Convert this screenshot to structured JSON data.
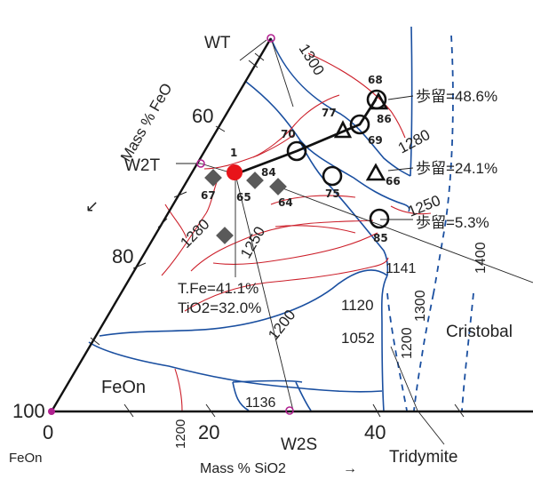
{
  "axes": {
    "feo_axis_label": "Mass %  FeO",
    "sio2_axis_label": "Mass %  SiO2",
    "left_arrow": "↙",
    "right_arrow": "→",
    "tick_60": "60",
    "tick_80": "80",
    "tick_100": "100",
    "tick_0": "0",
    "tick_20": "20",
    "tick_40": "40",
    "corner_label": "FeOn"
  },
  "phases": {
    "wt": "WT",
    "w2t": "W2T",
    "w2s": "W2S",
    "feon_field": "FeOn",
    "cristobal": "Cristobal",
    "tridymite": "Tridymite"
  },
  "isotherms": [
    "1300",
    "1280",
    "1250",
    "1280",
    "1250",
    "1200",
    "1141",
    "1300",
    "1400",
    "1120",
    "1052",
    "1200",
    "1136",
    "1200"
  ],
  "samples": {
    "point_1": "1",
    "point_65": "65",
    "point_67": "67",
    "point_84": "84",
    "point_64": "64",
    "point_70": "70",
    "point_75": "75",
    "point_77": "77",
    "point_68": "68",
    "point_86": "86",
    "point_69": "69",
    "point_66": "66",
    "point_85": "85"
  },
  "callouts": {
    "yield_1": "歩留=48.6%",
    "yield_2": "歩留=24.1%",
    "yield_3": "歩留=5.3%",
    "tfe": "T.Fe=41.1%",
    "tio2": "TiO2=32.0%"
  },
  "colors": {
    "liquidus": "#1a4fa0",
    "isotherm": "#cc1f2a",
    "marker_red": "#e8141a",
    "marker_grey": "#5a5a5a",
    "phase_point": "#b0208f"
  }
}
